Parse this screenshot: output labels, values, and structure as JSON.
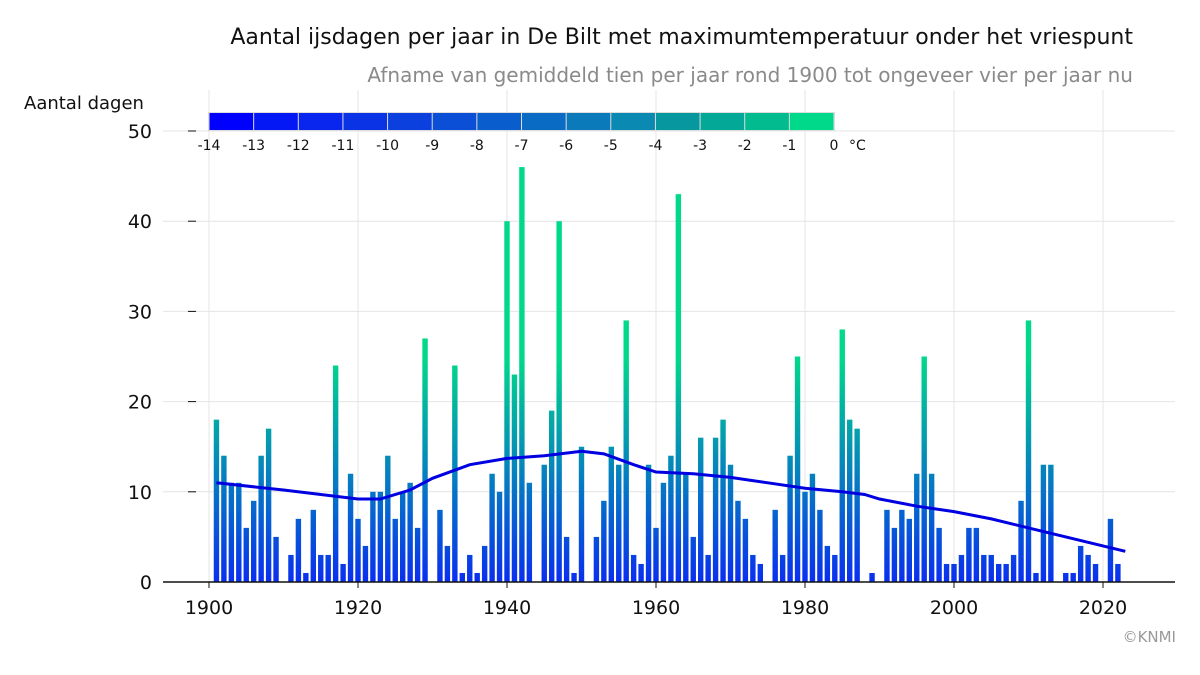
{
  "chart_data": {
    "type": "bar",
    "title": "Aantal ijsdagen per jaar in De Bilt met maximumtemperatuur onder het vriespunt",
    "subtitle": "Afname van gemiddeld tien per jaar rond 1900 tot ongeveer vier per jaar nu",
    "ylabel": "Aantal dagen",
    "xlabel": "",
    "ylim": [
      0,
      50
    ],
    "xlim": [
      1894,
      2030
    ],
    "yticks": [
      0,
      10,
      20,
      30,
      40,
      50
    ],
    "xticks": [
      1900,
      1920,
      1940,
      1960,
      1980,
      2000,
      2020
    ],
    "grid": true,
    "credit": "©KNMI",
    "colorbar": {
      "ticks": [
        "-14",
        "-13",
        "-12",
        "-11",
        "-10",
        "-9",
        "-8",
        "-7",
        "-6",
        "-5",
        "-4",
        "-3",
        "-2",
        "-1",
        "0"
      ],
      "unit": "°C",
      "colors": [
        "#0000ff",
        "#0418f6",
        "#0826ee",
        "#0a33e6",
        "#0b40df",
        "#0a4fd6",
        "#0a5dcd",
        "#0a6bc4",
        "#0a7abb",
        "#0a89b2",
        "#07989f",
        "#04a897",
        "#02bb8f",
        "#00d98a"
      ]
    },
    "bar_color_bottom": "#0a2ff0",
    "bar_color_top": "#00d98a",
    "trend_color": "#0000e0",
    "x": [
      1901,
      1902,
      1903,
      1904,
      1905,
      1906,
      1907,
      1908,
      1909,
      1910,
      1911,
      1912,
      1913,
      1914,
      1915,
      1916,
      1917,
      1918,
      1919,
      1920,
      1921,
      1922,
      1923,
      1924,
      1925,
      1926,
      1927,
      1928,
      1929,
      1930,
      1931,
      1932,
      1933,
      1934,
      1935,
      1936,
      1937,
      1938,
      1939,
      1940,
      1941,
      1942,
      1943,
      1944,
      1945,
      1946,
      1947,
      1948,
      1949,
      1950,
      1951,
      1952,
      1953,
      1954,
      1955,
      1956,
      1957,
      1958,
      1959,
      1960,
      1961,
      1962,
      1963,
      1964,
      1965,
      1966,
      1967,
      1968,
      1969,
      1970,
      1971,
      1972,
      1973,
      1974,
      1975,
      1976,
      1977,
      1978,
      1979,
      1980,
      1981,
      1982,
      1983,
      1984,
      1985,
      1986,
      1987,
      1988,
      1989,
      1990,
      1991,
      1992,
      1993,
      1994,
      1995,
      1996,
      1997,
      1998,
      1999,
      2000,
      2001,
      2002,
      2003,
      2004,
      2005,
      2006,
      2007,
      2008,
      2009,
      2010,
      2011,
      2012,
      2013,
      2014,
      2015,
      2016,
      2017,
      2018,
      2019,
      2020,
      2021,
      2022
    ],
    "values": [
      18,
      14,
      11,
      11,
      6,
      9,
      14,
      17,
      5,
      0,
      3,
      7,
      1,
      8,
      3,
      3,
      24,
      2,
      12,
      7,
      4,
      10,
      10,
      14,
      7,
      10,
      11,
      6,
      27,
      0,
      8,
      4,
      24,
      1,
      3,
      1,
      4,
      12,
      10,
      40,
      23,
      46,
      11,
      0,
      13,
      19,
      40,
      5,
      1,
      15,
      0,
      5,
      9,
      15,
      13,
      29,
      3,
      2,
      13,
      6,
      11,
      14,
      43,
      12,
      5,
      16,
      3,
      16,
      18,
      13,
      9,
      7,
      3,
      2,
      0,
      8,
      3,
      14,
      25,
      10,
      12,
      8,
      4,
      3,
      28,
      18,
      17,
      0,
      1,
      0,
      8,
      6,
      8,
      7,
      12,
      25,
      12,
      6,
      2,
      2,
      3,
      6,
      6,
      3,
      3,
      2,
      2,
      3,
      9,
      29,
      1,
      13,
      13,
      0,
      1,
      1,
      4,
      3,
      2,
      0,
      7,
      2
    ],
    "trend": {
      "name": "trend",
      "x": [
        1901,
        1910,
        1920,
        1923,
        1927,
        1930,
        1935,
        1940,
        1945,
        1950,
        1953,
        1957,
        1960,
        1965,
        1970,
        1975,
        1980,
        1985,
        1988,
        1990,
        1995,
        2000,
        2005,
        2010,
        2015,
        2020,
        2023
      ],
      "y": [
        11,
        10.2,
        9.2,
        9.2,
        10.2,
        11.5,
        13,
        13.7,
        14,
        14.5,
        14.2,
        13,
        12.2,
        12,
        11.6,
        11,
        10.4,
        10,
        9.7,
        9.2,
        8.4,
        7.8,
        7,
        6,
        5,
        4,
        3.4
      ]
    }
  }
}
